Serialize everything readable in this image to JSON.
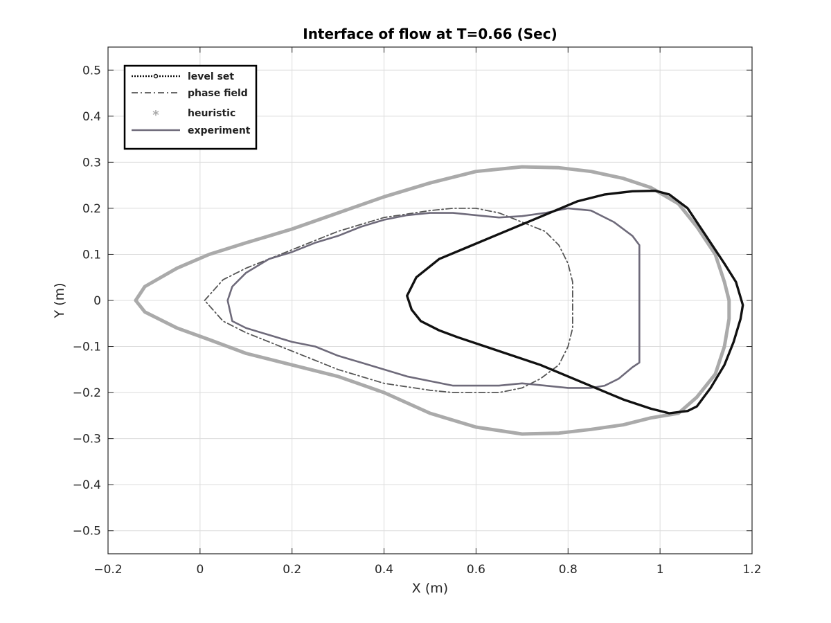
{
  "chart_data": {
    "type": "line",
    "title": "Interface of flow at T=0.66 (Sec)",
    "xlabel": "X (m)",
    "ylabel": "Y (m)",
    "xlim": [
      -0.2,
      1.2
    ],
    "ylim": [
      -0.55,
      0.55
    ],
    "xticks": [
      -0.2,
      0,
      0.2,
      0.4,
      0.6,
      0.8,
      1,
      1.2
    ],
    "xtick_labels": [
      "−0.2",
      "0",
      "0.2",
      "0.4",
      "0.6",
      "0.8",
      "1",
      "1.2"
    ],
    "yticks": [
      0.5,
      0.4,
      0.3,
      0.2,
      0.1,
      0,
      -0.1,
      -0.2,
      -0.3,
      -0.4,
      -0.5
    ],
    "ytick_labels": [
      "0.5",
      "0.4",
      "0.3",
      "0.2",
      "0.1",
      "0",
      "−0.1",
      "−0.2",
      "−0.3",
      "−0.4",
      "−0.5"
    ],
    "grid": true,
    "legend_position": "top-left",
    "series": [
      {
        "name": "level set",
        "style": "dotted-circle",
        "color": "#111111",
        "x": [
          0.45,
          0.47,
          0.52,
          0.58,
          0.64,
          0.7,
          0.76,
          0.82,
          0.88,
          0.94,
          0.99,
          1.02,
          1.06,
          1.1,
          1.14,
          1.165,
          1.18,
          1.175,
          1.16,
          1.14,
          1.11,
          1.08,
          1.06,
          1.02,
          0.98,
          0.92,
          0.86,
          0.8,
          0.74,
          0.68,
          0.62,
          0.56,
          0.52,
          0.48,
          0.46,
          0.45
        ],
        "y": [
          0.01,
          0.05,
          0.09,
          0.115,
          0.14,
          0.165,
          0.19,
          0.215,
          0.23,
          0.237,
          0.238,
          0.23,
          0.2,
          0.14,
          0.08,
          0.04,
          -0.01,
          -0.04,
          -0.09,
          -0.14,
          -0.19,
          -0.23,
          -0.24,
          -0.245,
          -0.235,
          -0.215,
          -0.19,
          -0.165,
          -0.14,
          -0.12,
          -0.1,
          -0.08,
          -0.065,
          -0.045,
          -0.02,
          0.01
        ]
      },
      {
        "name": "phase field",
        "style": "dash-dot",
        "color": "#555555",
        "x": [
          0.01,
          0.05,
          0.1,
          0.2,
          0.3,
          0.4,
          0.5,
          0.55,
          0.6,
          0.65,
          0.7,
          0.75,
          0.78,
          0.8,
          0.81,
          0.81,
          0.81,
          0.8,
          0.78,
          0.74,
          0.7,
          0.65,
          0.6,
          0.55,
          0.5,
          0.4,
          0.3,
          0.2,
          0.1,
          0.05,
          0.01
        ],
        "y": [
          0.0,
          0.045,
          0.07,
          0.11,
          0.15,
          0.18,
          0.195,
          0.2,
          0.2,
          0.19,
          0.17,
          0.15,
          0.12,
          0.08,
          0.04,
          0.0,
          -0.06,
          -0.1,
          -0.14,
          -0.17,
          -0.19,
          -0.2,
          -0.2,
          -0.2,
          -0.195,
          -0.18,
          -0.15,
          -0.11,
          -0.07,
          -0.045,
          0.0
        ]
      },
      {
        "name": "heuristic",
        "style": "asterisk",
        "color": "#aaaaaa",
        "x": [
          -0.14,
          -0.12,
          -0.05,
          0.02,
          0.1,
          0.2,
          0.3,
          0.4,
          0.5,
          0.6,
          0.7,
          0.78,
          0.85,
          0.92,
          0.98,
          1.04,
          1.08,
          1.12,
          1.14,
          1.15,
          1.15,
          1.14,
          1.12,
          1.08,
          1.04,
          0.98,
          0.92,
          0.85,
          0.78,
          0.7,
          0.6,
          0.5,
          0.4,
          0.3,
          0.2,
          0.1,
          0.02,
          -0.05,
          -0.12,
          -0.14
        ],
        "y": [
          0.0,
          0.03,
          0.07,
          0.1,
          0.125,
          0.155,
          0.19,
          0.225,
          0.255,
          0.28,
          0.29,
          0.288,
          0.28,
          0.265,
          0.245,
          0.21,
          0.16,
          0.1,
          0.04,
          0.0,
          -0.04,
          -0.1,
          -0.16,
          -0.21,
          -0.245,
          -0.255,
          -0.27,
          -0.28,
          -0.288,
          -0.29,
          -0.275,
          -0.245,
          -0.2,
          -0.165,
          -0.14,
          -0.115,
          -0.085,
          -0.06,
          -0.025,
          0.0
        ]
      },
      {
        "name": "experiment",
        "style": "solid",
        "color": "#6e6a7a",
        "x": [
          0.06,
          0.07,
          0.1,
          0.15,
          0.2,
          0.25,
          0.3,
          0.35,
          0.4,
          0.45,
          0.5,
          0.55,
          0.6,
          0.65,
          0.7,
          0.75,
          0.8,
          0.85,
          0.9,
          0.94,
          0.955,
          0.955,
          0.955,
          0.955,
          0.94,
          0.91,
          0.88,
          0.85,
          0.8,
          0.75,
          0.7,
          0.65,
          0.6,
          0.55,
          0.5,
          0.45,
          0.4,
          0.35,
          0.3,
          0.25,
          0.2,
          0.15,
          0.1,
          0.07,
          0.06
        ],
        "y": [
          0.0,
          0.03,
          0.06,
          0.09,
          0.105,
          0.125,
          0.14,
          0.16,
          0.175,
          0.185,
          0.19,
          0.19,
          0.185,
          0.18,
          0.183,
          0.19,
          0.2,
          0.195,
          0.17,
          0.14,
          0.12,
          0.0,
          -0.1,
          -0.135,
          -0.145,
          -0.17,
          -0.185,
          -0.19,
          -0.19,
          -0.185,
          -0.18,
          -0.185,
          -0.185,
          -0.185,
          -0.175,
          -0.165,
          -0.15,
          -0.135,
          -0.12,
          -0.1,
          -0.09,
          -0.075,
          -0.06,
          -0.045,
          0.0
        ]
      }
    ]
  }
}
